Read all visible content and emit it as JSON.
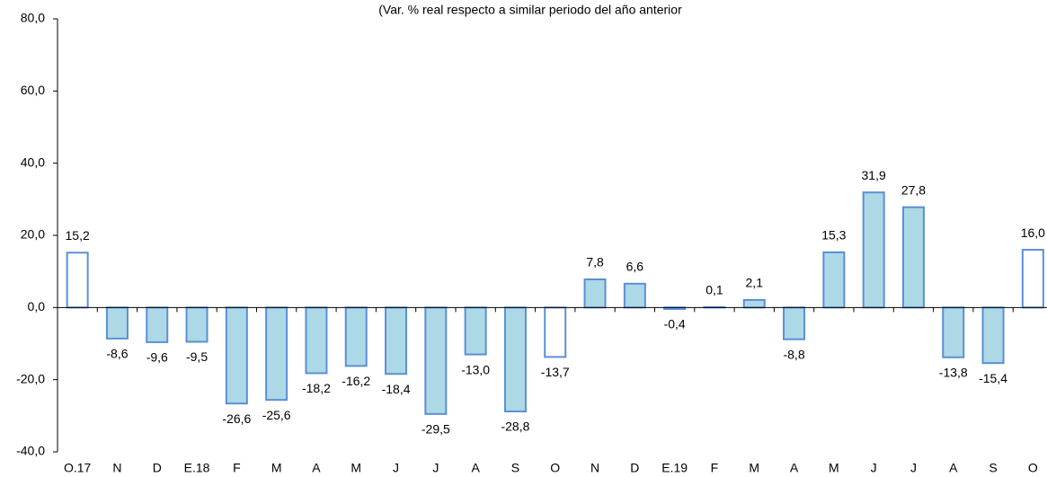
{
  "chart_data": {
    "type": "bar",
    "title": "(Var. % real respecto a similar periodo del año anterior",
    "categories": [
      "O.17",
      "N",
      "D",
      "E.18",
      "F",
      "M",
      "A",
      "M",
      "J",
      "J",
      "A",
      "S",
      "O",
      "N",
      "D",
      "E.19",
      "F",
      "M",
      "A",
      "M",
      "J",
      "J",
      "A",
      "S",
      "O"
    ],
    "values": [
      15.2,
      -8.6,
      -9.6,
      -9.5,
      -26.6,
      -25.6,
      -18.2,
      -16.2,
      -18.4,
      -29.5,
      -13.0,
      -28.8,
      -13.7,
      7.8,
      6.6,
      -0.4,
      0.1,
      2.1,
      -8.8,
      15.3,
      31.9,
      27.8,
      -13.8,
      -15.4,
      16.0
    ],
    "value_labels": [
      "15,2",
      "-8,6",
      "-9,6",
      "-9,5",
      "-26,6",
      "-25,6",
      "-18,2",
      "-16,2",
      "-18,4",
      "-29,5",
      "-13,0",
      "-28,8",
      "-13,7",
      "7,8",
      "6,6",
      "-0,4",
      "0,1",
      "2,1",
      "-8,8",
      "15,3",
      "31,9",
      "27,8",
      "-13,8",
      "-15,4",
      "16,0"
    ],
    "colors": [
      "#ffffff",
      "#add8e6",
      "#add8e6",
      "#add8e6",
      "#add8e6",
      "#add8e6",
      "#add8e6",
      "#add8e6",
      "#add8e6",
      "#add8e6",
      "#add8e6",
      "#add8e6",
      "#ffffff",
      "#add8e6",
      "#add8e6",
      "#add8e6",
      "#add8e6",
      "#add8e6",
      "#add8e6",
      "#add8e6",
      "#add8e6",
      "#add8e6",
      "#add8e6",
      "#add8e6",
      "#ffffff"
    ],
    "edge_color": "#5b8fd6",
    "ylim": [
      -40,
      80
    ],
    "yticks": [
      {
        "value": -40,
        "label": "-40,0"
      },
      {
        "value": -20,
        "label": "-20,0"
      },
      {
        "value": 0,
        "label": "0,0"
      },
      {
        "value": 20,
        "label": "20,0"
      },
      {
        "value": 40,
        "label": "40,0"
      },
      {
        "value": 60,
        "label": "60,0"
      },
      {
        "value": 80,
        "label": "80,0"
      }
    ],
    "grid": false
  }
}
